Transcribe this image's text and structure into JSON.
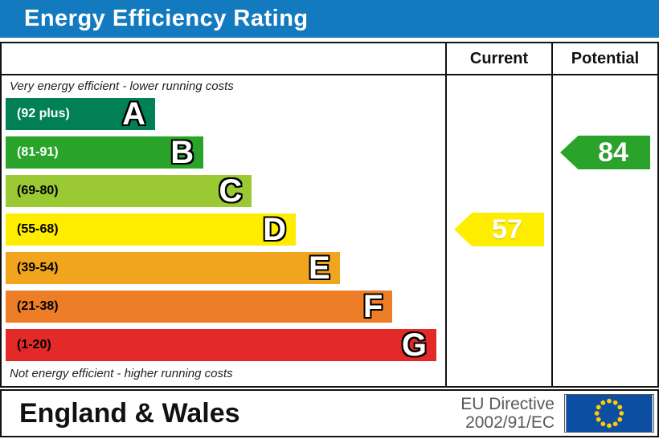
{
  "title": "Energy Efficiency Rating",
  "columns": {
    "current": "Current",
    "potential": "Potential"
  },
  "notes": {
    "top": "Very energy efficient - lower running costs",
    "bottom": "Not energy efficient - higher running costs"
  },
  "chart_data": {
    "type": "bar",
    "title": "Energy Efficiency Rating",
    "bands": [
      {
        "letter": "A",
        "range": "(92 plus)",
        "color": "#008054",
        "range_text_color": "#ffffff",
        "width_pct": 34
      },
      {
        "letter": "B",
        "range": "(81-91)",
        "color": "#2aa32a",
        "range_text_color": "#ffffff",
        "width_pct": 45
      },
      {
        "letter": "C",
        "range": "(69-80)",
        "color": "#9ac934",
        "range_text_color": "#000000",
        "width_pct": 56
      },
      {
        "letter": "D",
        "range": "(55-68)",
        "color": "#ffed00",
        "range_text_color": "#000000",
        "width_pct": 66
      },
      {
        "letter": "E",
        "range": "(39-54)",
        "color": "#f1a51f",
        "range_text_color": "#000000",
        "width_pct": 76
      },
      {
        "letter": "F",
        "range": "(21-38)",
        "color": "#ee7d28",
        "range_text_color": "#000000",
        "width_pct": 88
      },
      {
        "letter": "G",
        "range": "(1-20)",
        "color": "#e42a28",
        "range_text_color": "#000000",
        "width_pct": 98
      }
    ],
    "current": {
      "value": 57,
      "band": "D",
      "arrow_color": "#ffed00",
      "text_color": "#ffffff"
    },
    "potential": {
      "value": 84,
      "band": "B",
      "arrow_color": "#2aa32a",
      "text_color": "#ffffff"
    }
  },
  "footer": {
    "region": "England & Wales",
    "directive_line1": "EU Directive",
    "directive_line2": "2002/91/EC",
    "eu_flag": {
      "background": "#0b4ea2",
      "star_color": "#ffcc00",
      "star_count": 12
    }
  },
  "colors": {
    "title_bar": "#137abf",
    "title_text": "#ffffff"
  }
}
